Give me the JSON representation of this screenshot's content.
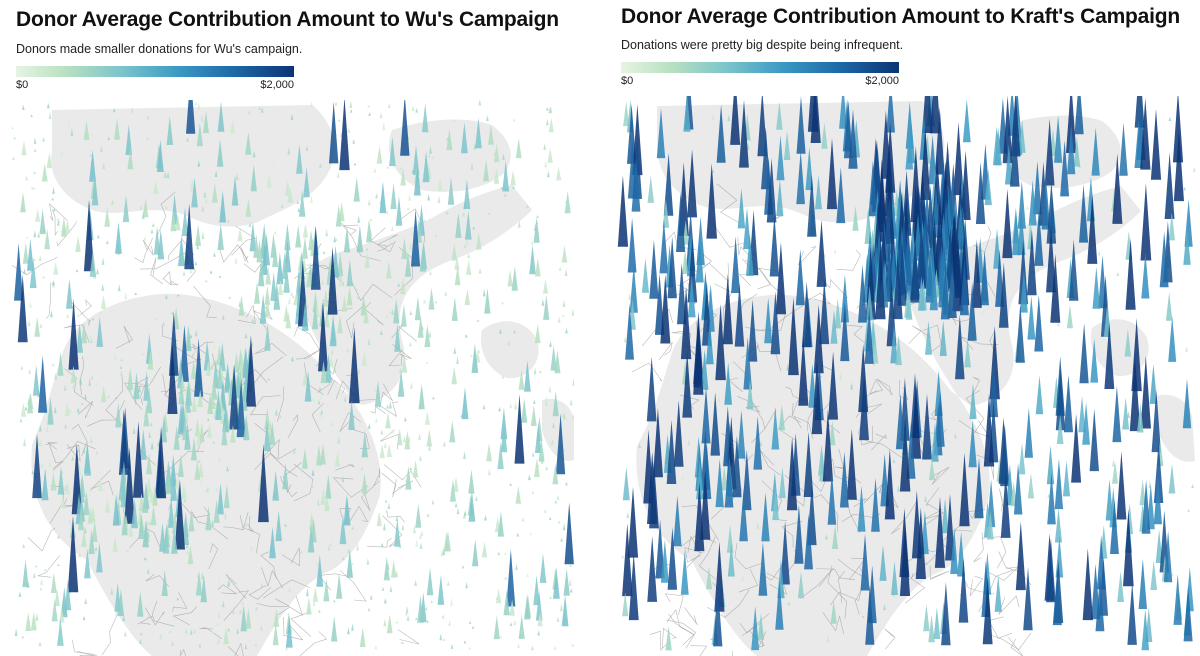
{
  "panels": [
    {
      "title": "Donor Average Contribution Amount to Wu's Campaign",
      "subtitle": "Donors made smaller donations for Wu's campaign.",
      "legend": {
        "min_label": "$0",
        "max_label": "$2,000",
        "min_value": 0,
        "max_value": 2000
      },
      "spikes": {
        "seed": 11,
        "count": 560,
        "mean_value": 420,
        "dense_clusters": 3,
        "small_marks": 650
      }
    },
    {
      "title": "Donor Average Contribution Amount to Kraft's Campaign",
      "subtitle": "Donations were pretty big despite being infrequent.",
      "legend": {
        "min_label": "$0",
        "max_label": "$2,000",
        "min_value": 0,
        "max_value": 2000
      },
      "spikes": {
        "seed": 29,
        "count": 620,
        "mean_value": 1150,
        "dense_clusters": 1,
        "small_marks": 80
      }
    }
  ],
  "colors": {
    "low": "#e6f4e3",
    "mid": "#3b9ac4",
    "high": "#0c3474",
    "land": "#eaeaea",
    "boundary": "#9a9a9a"
  }
}
